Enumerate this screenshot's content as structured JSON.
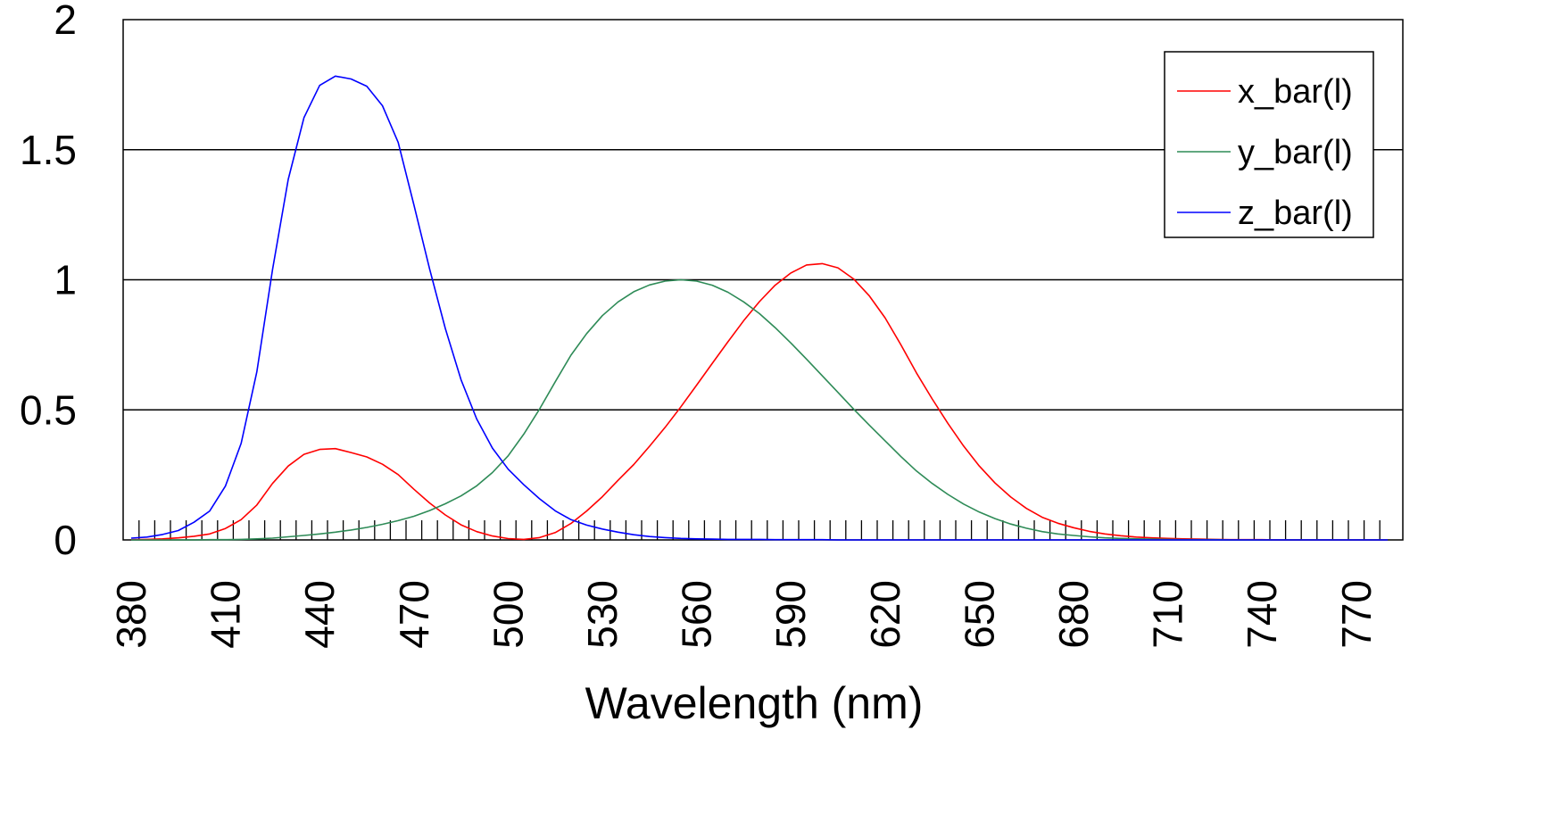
{
  "chart_data": {
    "type": "line",
    "title": "",
    "xlabel": "Wavelength (nm)",
    "ylabel": "",
    "xlim": [
      380,
      780
    ],
    "ylim": [
      0,
      2
    ],
    "x_ticks": [
      380,
      410,
      440,
      470,
      500,
      530,
      560,
      590,
      620,
      650,
      680,
      710,
      740,
      770
    ],
    "y_ticks": [
      {
        "value": 0,
        "label": "0"
      },
      {
        "value": 0.5,
        "label": "0.5"
      },
      {
        "value": 1,
        "label": "1"
      },
      {
        "value": 1.5,
        "label": "1.5"
      },
      {
        "value": 2,
        "label": "2"
      }
    ],
    "grid": "horizontal",
    "legend_position": "top-right",
    "colors": {
      "x_bar": "#ff0000",
      "y_bar": "#2e8b57",
      "z_bar": "#0000ff"
    },
    "x": [
      380,
      385,
      390,
      395,
      400,
      405,
      410,
      415,
      420,
      425,
      430,
      435,
      440,
      445,
      450,
      455,
      460,
      465,
      470,
      475,
      480,
      485,
      490,
      495,
      500,
      505,
      510,
      515,
      520,
      525,
      530,
      535,
      540,
      545,
      550,
      555,
      560,
      565,
      570,
      575,
      580,
      585,
      590,
      595,
      600,
      605,
      610,
      615,
      620,
      625,
      630,
      635,
      640,
      645,
      650,
      655,
      660,
      665,
      670,
      675,
      680,
      685,
      690,
      695,
      700,
      705,
      710,
      715,
      720,
      725,
      730,
      735,
      740,
      745,
      750,
      755,
      760,
      765,
      770,
      775,
      780
    ],
    "series": [
      {
        "name": "x_bar(l)",
        "key": "x_bar",
        "values": [
          0.001,
          0.002,
          0.004,
          0.008,
          0.014,
          0.023,
          0.044,
          0.078,
          0.134,
          0.217,
          0.284,
          0.329,
          0.348,
          0.351,
          0.336,
          0.319,
          0.291,
          0.251,
          0.195,
          0.142,
          0.096,
          0.058,
          0.032,
          0.015,
          0.005,
          0.002,
          0.009,
          0.028,
          0.063,
          0.111,
          0.166,
          0.229,
          0.29,
          0.36,
          0.433,
          0.512,
          0.595,
          0.679,
          0.762,
          0.843,
          0.916,
          0.979,
          1.026,
          1.057,
          1.062,
          1.046,
          1.003,
          0.938,
          0.854,
          0.751,
          0.642,
          0.542,
          0.448,
          0.361,
          0.284,
          0.219,
          0.165,
          0.121,
          0.087,
          0.064,
          0.047,
          0.033,
          0.023,
          0.016,
          0.011,
          0.008,
          0.006,
          0.004,
          0.003,
          0.002,
          0.001,
          0.001,
          0.001,
          0.0,
          0.0,
          0.0,
          0.0,
          0.0,
          0.0,
          0.0,
          0.0
        ]
      },
      {
        "name": "y_bar(l)",
        "key": "y_bar",
        "values": [
          0.0,
          0.0,
          0.0,
          0.0,
          0.0,
          0.001,
          0.001,
          0.002,
          0.004,
          0.007,
          0.012,
          0.017,
          0.023,
          0.03,
          0.038,
          0.048,
          0.06,
          0.074,
          0.091,
          0.113,
          0.139,
          0.169,
          0.208,
          0.259,
          0.323,
          0.407,
          0.503,
          0.608,
          0.71,
          0.793,
          0.862,
          0.915,
          0.954,
          0.98,
          0.995,
          1.0,
          0.995,
          0.979,
          0.952,
          0.915,
          0.87,
          0.816,
          0.757,
          0.695,
          0.631,
          0.567,
          0.503,
          0.441,
          0.381,
          0.321,
          0.265,
          0.217,
          0.175,
          0.138,
          0.107,
          0.082,
          0.061,
          0.045,
          0.032,
          0.023,
          0.017,
          0.012,
          0.008,
          0.006,
          0.004,
          0.003,
          0.002,
          0.001,
          0.001,
          0.001,
          0.0,
          0.0,
          0.0,
          0.0,
          0.0,
          0.0,
          0.0,
          0.0,
          0.0,
          0.0,
          0.0
        ]
      },
      {
        "name": "z_bar(l)",
        "key": "z_bar",
        "values": [
          0.007,
          0.011,
          0.021,
          0.036,
          0.068,
          0.111,
          0.207,
          0.371,
          0.646,
          1.039,
          1.386,
          1.623,
          1.747,
          1.783,
          1.772,
          1.744,
          1.669,
          1.528,
          1.288,
          1.042,
          0.813,
          0.616,
          0.465,
          0.353,
          0.272,
          0.212,
          0.158,
          0.112,
          0.078,
          0.057,
          0.042,
          0.03,
          0.02,
          0.013,
          0.009,
          0.006,
          0.004,
          0.003,
          0.002,
          0.002,
          0.002,
          0.001,
          0.001,
          0.001,
          0.001,
          0.0,
          0.0,
          0.0,
          0.0,
          0.0,
          0.0,
          0.0,
          0.0,
          0.0,
          0.0,
          0.0,
          0.0,
          0.0,
          0.0,
          0.0,
          0.0,
          0.0,
          0.0,
          0.0,
          0.0,
          0.0,
          0.0,
          0.0,
          0.0,
          0.0,
          0.0,
          0.0,
          0.0,
          0.0,
          0.0,
          0.0,
          0.0,
          0.0,
          0.0,
          0.0,
          0.0
        ]
      }
    ]
  }
}
